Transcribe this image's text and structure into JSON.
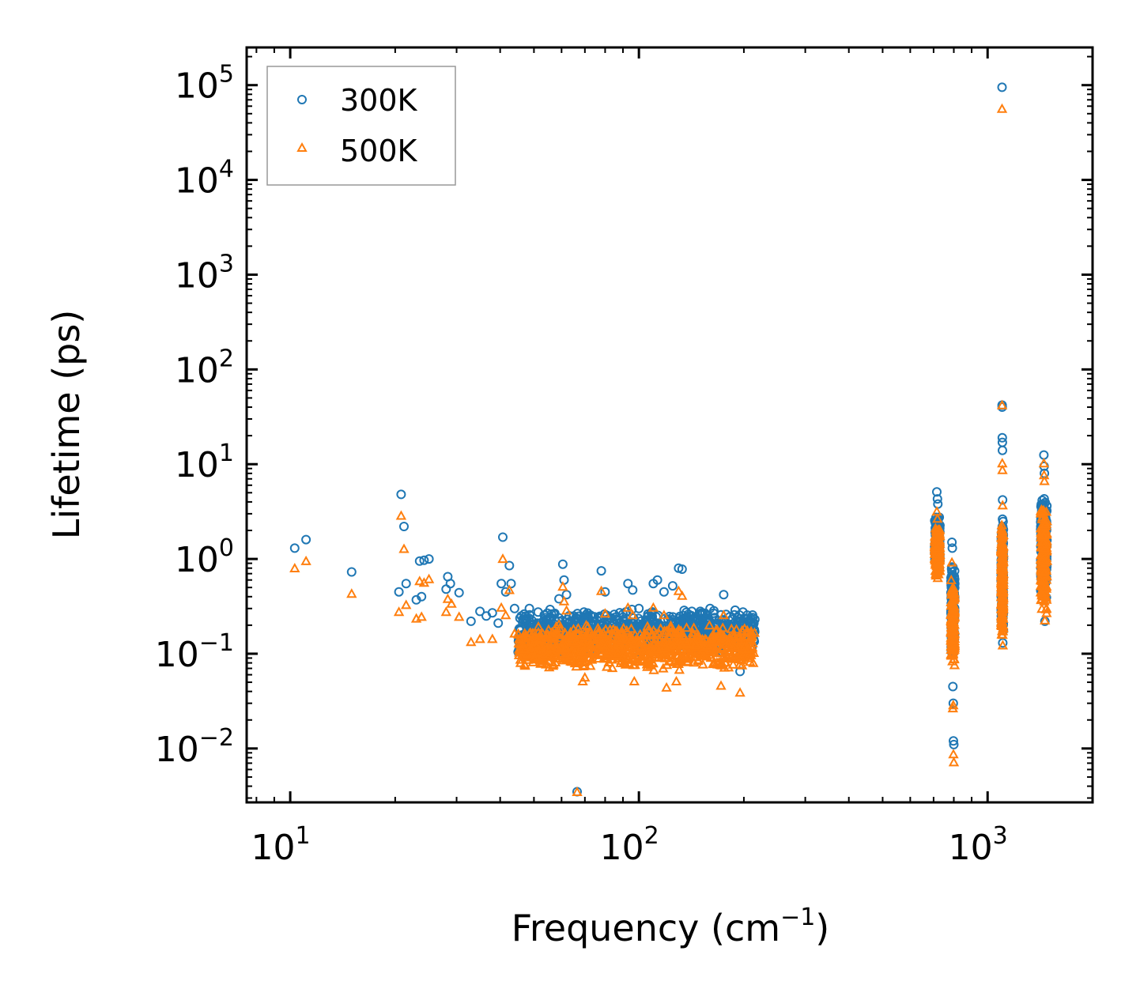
{
  "chart_data": {
    "type": "scatter",
    "xscale": "log",
    "yscale": "log",
    "xlabel": "Frequency (cm",
    "xlabel_superscript": "−1",
    "xlabel_suffix": ")",
    "ylabel": "Lifetime (ps)",
    "xlim": [
      7.5,
      2000
    ],
    "ylim": [
      0.0027,
      250000
    ],
    "x_ticks": [
      {
        "base": "10",
        "exp": "1",
        "value": 10
      },
      {
        "base": "10",
        "exp": "2",
        "value": 100
      },
      {
        "base": "10",
        "exp": "3",
        "value": 1000
      }
    ],
    "y_ticks": [
      {
        "base": "10",
        "exp": "−2",
        "value": 0.01
      },
      {
        "base": "10",
        "exp": "−1",
        "value": 0.1
      },
      {
        "base": "10",
        "exp": "0",
        "value": 1
      },
      {
        "base": "10",
        "exp": "1",
        "value": 10
      },
      {
        "base": "10",
        "exp": "2",
        "value": 100
      },
      {
        "base": "10",
        "exp": "3",
        "value": 1000
      },
      {
        "base": "10",
        "exp": "4",
        "value": 10000
      },
      {
        "base": "10",
        "exp": "5",
        "value": 100000
      }
    ],
    "legend_position": "top-left",
    "colors": {
      "300K": "#1f77b4",
      "500K": "#ff7f0e"
    },
    "series": [
      {
        "name": "300K",
        "marker": "circle",
        "points": [
          [
            10.3,
            1.3
          ],
          [
            11.1,
            1.6
          ],
          [
            15.0,
            0.73
          ],
          [
            20.5,
            0.45
          ],
          [
            20.8,
            4.8
          ],
          [
            21.2,
            2.2
          ],
          [
            21.5,
            0.55
          ],
          [
            23.0,
            0.37
          ],
          [
            23.5,
            0.95
          ],
          [
            23.8,
            0.4
          ],
          [
            24.2,
            0.97
          ],
          [
            25.0,
            1.0
          ],
          [
            28.0,
            0.48
          ],
          [
            28.3,
            0.65
          ],
          [
            28.8,
            0.55
          ],
          [
            30.5,
            0.44
          ],
          [
            33.0,
            0.22
          ],
          [
            35.0,
            0.28
          ],
          [
            36.5,
            0.25
          ],
          [
            38.0,
            0.27
          ],
          [
            39.5,
            0.21
          ],
          [
            40.3,
            0.55
          ],
          [
            40.7,
            1.7
          ],
          [
            41.5,
            0.45
          ],
          [
            42.5,
            0.85
          ],
          [
            43.0,
            0.55
          ],
          [
            44.0,
            0.3
          ],
          [
            46.0,
            0.25
          ],
          [
            48.5,
            0.3
          ],
          [
            51.0,
            0.21
          ],
          [
            56.0,
            0.24
          ],
          [
            59.0,
            0.38
          ],
          [
            60.5,
            0.88
          ],
          [
            61.0,
            0.6
          ],
          [
            62.0,
            0.42
          ],
          [
            63.5,
            0.22
          ],
          [
            66.5,
            0.0035
          ],
          [
            74.0,
            0.18
          ],
          [
            78.0,
            0.75
          ],
          [
            80.0,
            0.45
          ],
          [
            85.0,
            0.26
          ],
          [
            93.0,
            0.55
          ],
          [
            96.0,
            0.47
          ],
          [
            100.0,
            0.3
          ],
          [
            110.0,
            0.55
          ],
          [
            113.0,
            0.6
          ],
          [
            118.0,
            0.45
          ],
          [
            125.0,
            0.52
          ],
          [
            130.0,
            0.8
          ],
          [
            133.0,
            0.78
          ],
          [
            140.0,
            0.25
          ],
          [
            150.0,
            0.28
          ],
          [
            160.0,
            0.3
          ],
          [
            175.0,
            0.42
          ],
          [
            195.0,
            0.065
          ],
          [
            215.0,
            0.23
          ],
          [
            715.0,
            5.1
          ],
          [
            718.0,
            4.3
          ],
          [
            720.0,
            3.8
          ],
          [
            790.0,
            1.5
          ],
          [
            792.0,
            1.3
          ],
          [
            795.0,
            0.045
          ],
          [
            797.0,
            0.03
          ],
          [
            798.0,
            0.012
          ],
          [
            800.0,
            0.011
          ],
          [
            1100.0,
            95000
          ],
          [
            1100.5,
            42
          ],
          [
            1101.0,
            40
          ],
          [
            1102.0,
            19
          ],
          [
            1102.5,
            17
          ],
          [
            1103.0,
            14
          ],
          [
            1104.0,
            4.2
          ],
          [
            1105.0,
            0.13
          ],
          [
            1450.0,
            12.5
          ],
          [
            1452.0,
            9.5
          ],
          [
            1455.0,
            8.0
          ],
          [
            1460.0,
            0.22
          ]
        ],
        "bands": [
          {
            "x": [
              45,
              215
            ],
            "y": [
              0.1,
              0.3
            ],
            "n": 900
          },
          {
            "x": [
              705,
              730
            ],
            "y": [
              0.7,
              3.0
            ],
            "n": 160
          },
          {
            "x": [
              785,
              805
            ],
            "y": [
              0.09,
              0.95
            ],
            "n": 160
          },
          {
            "x": [
              1094,
              1110
            ],
            "y": [
              0.15,
              3.0
            ],
            "n": 200
          },
          {
            "x": [
              1420,
              1480
            ],
            "y": [
              0.35,
              5.0
            ],
            "n": 220
          }
        ]
      },
      {
        "name": "500K",
        "marker": "triangle",
        "points": [
          [
            10.3,
            0.78
          ],
          [
            11.1,
            0.93
          ],
          [
            15.0,
            0.42
          ],
          [
            20.5,
            0.27
          ],
          [
            20.8,
            2.8
          ],
          [
            21.2,
            1.25
          ],
          [
            21.5,
            0.32
          ],
          [
            23.0,
            0.23
          ],
          [
            23.5,
            0.57
          ],
          [
            23.8,
            0.24
          ],
          [
            24.2,
            0.55
          ],
          [
            25.0,
            0.6
          ],
          [
            28.0,
            0.27
          ],
          [
            28.3,
            0.37
          ],
          [
            29.0,
            0.33
          ],
          [
            30.5,
            0.24
          ],
          [
            33.0,
            0.13
          ],
          [
            35.0,
            0.14
          ],
          [
            38.0,
            0.14
          ],
          [
            40.3,
            0.3
          ],
          [
            40.7,
            0.98
          ],
          [
            41.5,
            0.25
          ],
          [
            42.5,
            0.46
          ],
          [
            44.0,
            0.16
          ],
          [
            48.5,
            0.16
          ],
          [
            59.0,
            0.2
          ],
          [
            60.5,
            0.5
          ],
          [
            61.0,
            0.35
          ],
          [
            62.0,
            0.28
          ],
          [
            66.5,
            0.0034
          ],
          [
            69.0,
            0.05
          ],
          [
            70.0,
            0.055
          ],
          [
            78.0,
            0.45
          ],
          [
            80.0,
            0.26
          ],
          [
            93.0,
            0.3
          ],
          [
            96.0,
            0.25
          ],
          [
            97.0,
            0.05
          ],
          [
            110.0,
            0.3
          ],
          [
            118.0,
            0.25
          ],
          [
            120.0,
            0.043
          ],
          [
            130.0,
            0.45
          ],
          [
            133.0,
            0.4
          ],
          [
            128.0,
            0.05
          ],
          [
            175.0,
            0.25
          ],
          [
            172.0,
            0.045
          ],
          [
            195.0,
            0.038
          ],
          [
            715.0,
            3.1
          ],
          [
            718.0,
            2.6
          ],
          [
            790.0,
            0.9
          ],
          [
            795.0,
            0.026
          ],
          [
            797.0,
            0.028
          ],
          [
            798.0,
            0.0085
          ],
          [
            800.0,
            0.007
          ],
          [
            1100.0,
            55000
          ],
          [
            1100.5,
            41
          ],
          [
            1102.0,
            10
          ],
          [
            1103.0,
            8.5
          ],
          [
            1104.0,
            3.6
          ],
          [
            1105.0,
            0.12
          ],
          [
            1450.0,
            10
          ],
          [
            1452.0,
            7.5
          ],
          [
            1455.0,
            6.5
          ],
          [
            1460.0,
            0.22
          ]
        ],
        "bands": [
          {
            "x": [
              45,
              215
            ],
            "y": [
              0.065,
              0.2
            ],
            "n": 900
          },
          {
            "x": [
              705,
              730
            ],
            "y": [
              0.6,
              2.2
            ],
            "n": 160
          },
          {
            "x": [
              785,
              805
            ],
            "y": [
              0.07,
              0.6
            ],
            "n": 160
          },
          {
            "x": [
              1094,
              1110
            ],
            "y": [
              0.13,
              2.5
            ],
            "n": 200
          },
          {
            "x": [
              1420,
              1480
            ],
            "y": [
              0.22,
              4.0
            ],
            "n": 220
          }
        ]
      }
    ]
  }
}
